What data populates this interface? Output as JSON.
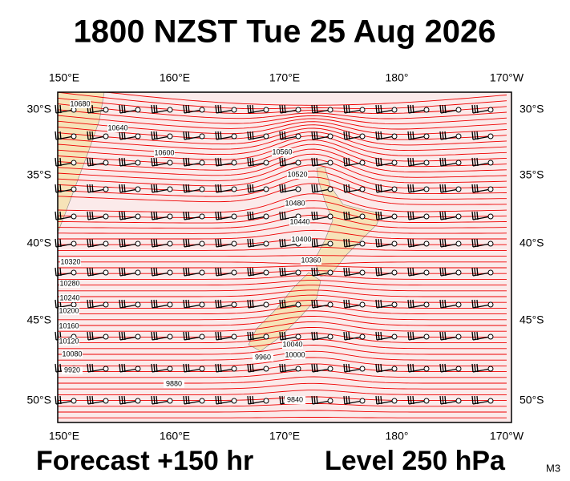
{
  "title": "1800 NZST Tue 25 Aug 2026",
  "map": {
    "longitude_labels": [
      "150°E",
      "160°E",
      "170°E",
      "180°",
      "170°W"
    ],
    "latitude_labels": [
      "30°S",
      "35°S",
      "40°S",
      "45°S",
      "50°S"
    ],
    "contour_labels": [
      "10680",
      "10640",
      "10600",
      "10560",
      "10520",
      "10480",
      "10440",
      "10400",
      "10360",
      "10320",
      "10280",
      "10240",
      "10200",
      "10160",
      "10120",
      "10080",
      "10040",
      "10000",
      "9960",
      "9920",
      "9880",
      "9840"
    ]
  },
  "footer": {
    "forecast": "Forecast +150 hr",
    "level": "Level 250 hPa",
    "model": "M3"
  }
}
